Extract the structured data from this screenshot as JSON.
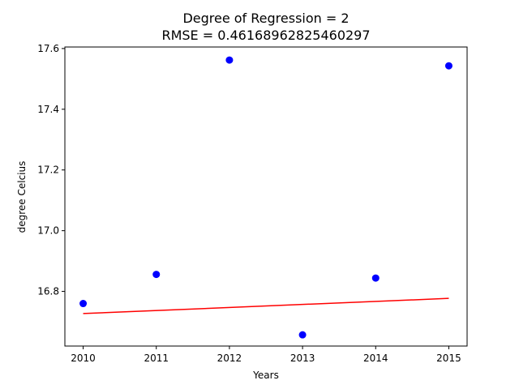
{
  "chart_data": {
    "type": "scatter",
    "title_line1": "Degree of Regression = 2",
    "title_line2": "RMSE = 0.46168962825460297",
    "xlabel": "Years",
    "ylabel": "degree Celcius",
    "xlim": [
      2009.75,
      2015.25
    ],
    "ylim": [
      16.62,
      17.605
    ],
    "xticks": [
      2010,
      2011,
      2012,
      2013,
      2014,
      2015
    ],
    "xtick_labels": [
      "2010",
      "2011",
      "2012",
      "2013",
      "2014",
      "2015"
    ],
    "yticks": [
      16.8,
      17.0,
      17.2,
      17.4,
      17.6
    ],
    "ytick_labels": [
      "16.8",
      "17.0",
      "17.2",
      "17.4",
      "17.6"
    ],
    "grid": false,
    "series": [
      {
        "kind": "scatter",
        "color": "#0000ff",
        "x": [
          2010,
          2011,
          2012,
          2013,
          2014,
          2015
        ],
        "y": [
          16.76,
          16.856,
          17.562,
          16.657,
          16.844,
          17.543
        ]
      },
      {
        "kind": "line",
        "color": "#ff0000",
        "x": [
          2010,
          2015
        ],
        "y": [
          16.727,
          16.777
        ]
      }
    ]
  }
}
